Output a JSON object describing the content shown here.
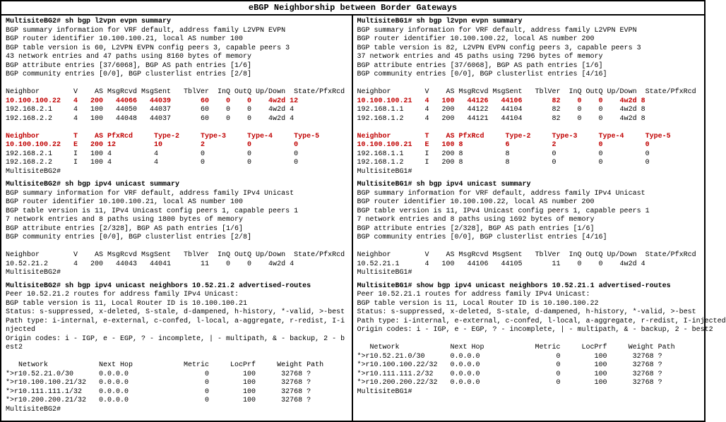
{
  "title": "eBGP Neighborship between Border Gateways",
  "colors": {
    "highlight": "#c00000",
    "text": "#000000",
    "bg": "#ffffff"
  },
  "left": {
    "host": "MultisiteBG2#",
    "evpn": {
      "cmd": "sh bgp l2vpn evpn summary",
      "info1": "BGP summary information for VRF default, address family L2VPN EVPN",
      "info2": "BGP router identifier 10.100.100.21, local AS number 100",
      "info3": "BGP table version is 60, L2VPN EVPN config peers 3, capable peers 3",
      "info4": "43 network entries and 47 paths using 8160 bytes of memory",
      "info5": "BGP attribute entries [37/6068], BGP AS path entries [1/6]",
      "info6": "BGP community entries [0/0], BGP clusterlist entries [2/8]",
      "hdr1": "Neighbor        V    AS MsgRcvd MsgSent   TblVer  InQ OutQ Up/Down  State/PfxRcd",
      "r1": "10.100.100.22   4   200   44066   44039       60    0    0    4w2d 12",
      "r2": "192.168.2.1     4   100   44050   44037       60    0    0    4w2d 4",
      "r3": "192.168.2.2     4   100   44048   44037       60    0    0    4w2d 4",
      "hdr2": "Neighbor        T    AS PfxRcd     Type-2     Type-3     Type-4     Type-5",
      "r4": "10.100.100.22   E   200 12         10         2          0          0",
      "r5": "192.168.2.1     I   100 4          4          0          0          0",
      "r6": "192.168.2.2     I   100 4          4          0          0          0"
    },
    "ipv4": {
      "cmd": "sh bgp ipv4 unicast summary",
      "info1": "BGP summary information for VRF default, address family IPv4 Unicast",
      "info2": "BGP router identifier 10.100.100.21, local AS number 100",
      "info3": "BGP table version is 11, IPv4 Unicast config peers 1, capable peers 1",
      "info4": "7 network entries and 8 paths using 1800 bytes of memory",
      "info5": "BGP attribute entries [2/328], BGP AS path entries [1/6]",
      "info6": "BGP community entries [0/0], BGP clusterlist entries [2/8]",
      "hdr": "Neighbor        V    AS MsgRcvd MsgSent   TblVer  InQ OutQ Up/Down  State/PfxRcd",
      "r1": "10.52.21.2      4   200   44043   44041       11    0    0    4w2d 4"
    },
    "adv": {
      "cmd": "sh bgp ipv4 unicast neighbors 10.52.21.2 advertised-routes",
      "info1": "Peer 10.52.21.2 routes for address family IPv4 Unicast:",
      "info2": "BGP table version is 11, Local Router ID is 10.100.100.21",
      "info3": "Status: s-suppressed, x-deleted, S-stale, d-dampened, h-history, *-valid, >-best",
      "info4": "Path type: i-internal, e-external, c-confed, l-local, a-aggregate, r-redist, I-i",
      "info4b": "njected",
      "info5": "Origin codes: i - IGP, e - EGP, ? - incomplete, | - multipath, & - backup, 2 - b",
      "info5b": "est2",
      "hdr": "   Network            Next Hop            Metric     LocPrf     Weight Path",
      "r1": "*>r10.52.21.0/30      0.0.0.0                  0        100      32768 ?",
      "r2": "*>r10.100.100.21/32   0.0.0.0                  0        100      32768 ?",
      "r3": "*>r10.111.111.1/32    0.0.0.0                  0        100      32768 ?",
      "r4": "*>r10.200.200.21/32   0.0.0.0                  0        100      32768 ?"
    }
  },
  "right": {
    "host": "MultisiteBG1#",
    "evpn": {
      "cmd": "sh bgp l2vpn evpn summary",
      "info1": "BGP summary information for VRF default, address family L2VPN EVPN",
      "info2": "BGP router identifier 10.100.100.22, local AS number 200",
      "info3": "BGP table version is 82, L2VPN EVPN config peers 3, capable peers 3",
      "info4": "37 network entries and 45 paths using 7296 bytes of memory",
      "info5": "BGP attribute entries [37/6068], BGP AS path entries [1/6]",
      "info6": "BGP community entries [0/0], BGP clusterlist entries [4/16]",
      "hdr1": "Neighbor        V    AS MsgRcvd MsgSent   TblVer  InQ OutQ Up/Down  State/PfxRcd",
      "r1": "10.100.100.21   4   100   44126   44106       82    0    0    4w2d 8",
      "r2": "192.168.1.1     4   200   44122   44104       82    0    0    4w2d 8",
      "r3": "192.168.1.2     4   200   44121   44104       82    0    0    4w2d 8",
      "hdr2": "Neighbor        T    AS PfxRcd     Type-2     Type-3     Type-4     Type-5",
      "r4": "10.100.100.21   E   100 8          6          2          0          0",
      "r5": "192.168.1.1     I   200 8          8          0          0          0",
      "r6": "192.168.1.2     I   200 8          8          0          0          0"
    },
    "ipv4": {
      "cmd": "sh bgp ipv4 unicast summary",
      "info1": "BGP summary information for VRF default, address family IPv4 Unicast",
      "info2": "BGP router identifier 10.100.100.22, local AS number 200",
      "info3": "BGP table version is 11, IPv4 Unicast config peers 1, capable peers 1",
      "info4": "7 network entries and 8 paths using 1692 bytes of memory",
      "info5": "BGP attribute entries [2/328], BGP AS path entries [1/6]",
      "info6": "BGP community entries [0/0], BGP clusterlist entries [4/16]",
      "hdr": "Neighbor        V    AS MsgRcvd MsgSent   TblVer  InQ OutQ Up/Down  State/PfxRcd",
      "r1": "10.52.21.1      4   100   44106   44105       11    0    0    4w2d 4"
    },
    "adv": {
      "cmd": "show bgp ipv4 unicast neighbors 10.52.21.1 advertised-routes",
      "info1": "Peer 10.52.21.1 routes for address family IPv4 Unicast:",
      "info2": "BGP table version is 11, Local Router ID is 10.100.100.22",
      "info3": "Status: s-suppressed, x-deleted, S-stale, d-dampened, h-history, *-valid, >-best",
      "info4": "Path type: i-internal, e-external, c-confed, l-local, a-aggregate, r-redist, I-injected",
      "info5": "Origin codes: i - IGP, e - EGP, ? - incomplete, | - multipath, & - backup, 2 - best2",
      "hdr": "   Network            Next Hop            Metric     LocPrf     Weight Path",
      "r1": "*>r10.52.21.0/30      0.0.0.0                  0        100      32768 ?",
      "r2": "*>r10.100.100.22/32   0.0.0.0                  0        100      32768 ?",
      "r3": "*>r10.111.111.2/32    0.0.0.0                  0        100      32768 ?",
      "r4": "*>r10.200.200.22/32   0.0.0.0                  0        100      32768 ?"
    }
  }
}
